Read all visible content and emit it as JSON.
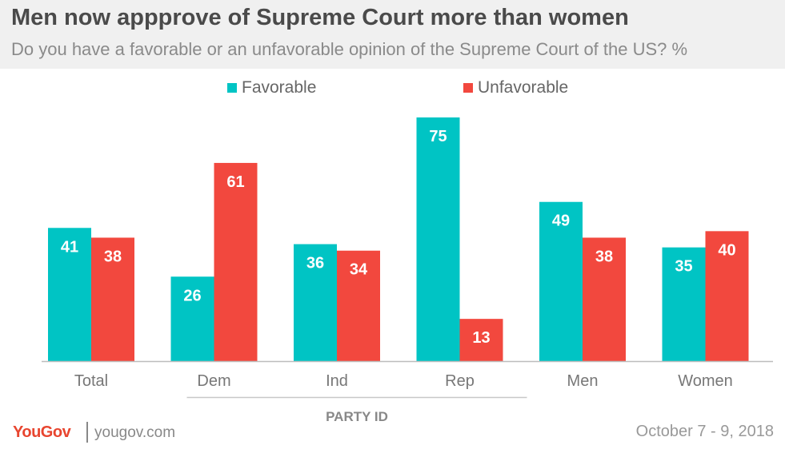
{
  "header": {
    "title": "Men now appprove of Supreme Court more than women",
    "subtitle": "Do you have a favorable or an unfavorable opinion of the Supreme Court of the US? %"
  },
  "colors": {
    "favorable": "#00c4c4",
    "unfavorable": "#f2483e"
  },
  "chart_data": {
    "type": "bar",
    "categories": [
      "Total",
      "Dem",
      "Ind",
      "Rep",
      "Men",
      "Women"
    ],
    "series": [
      {
        "name": "Favorable",
        "values": [
          41,
          26,
          36,
          75,
          49,
          35
        ]
      },
      {
        "name": "Unfavorable",
        "values": [
          38,
          61,
          34,
          13,
          38,
          40
        ]
      }
    ],
    "title": "",
    "xlabel": "",
    "ylabel": "",
    "ylim": [
      0,
      75
    ],
    "grid": false,
    "legend_position": "top-center",
    "group_label": {
      "text": "PARTY ID",
      "spans": [
        "Dem",
        "Ind",
        "Rep"
      ]
    }
  },
  "footer": {
    "logo": "YouGov",
    "url": "yougov.com",
    "date": "October 7 - 9, 2018"
  }
}
